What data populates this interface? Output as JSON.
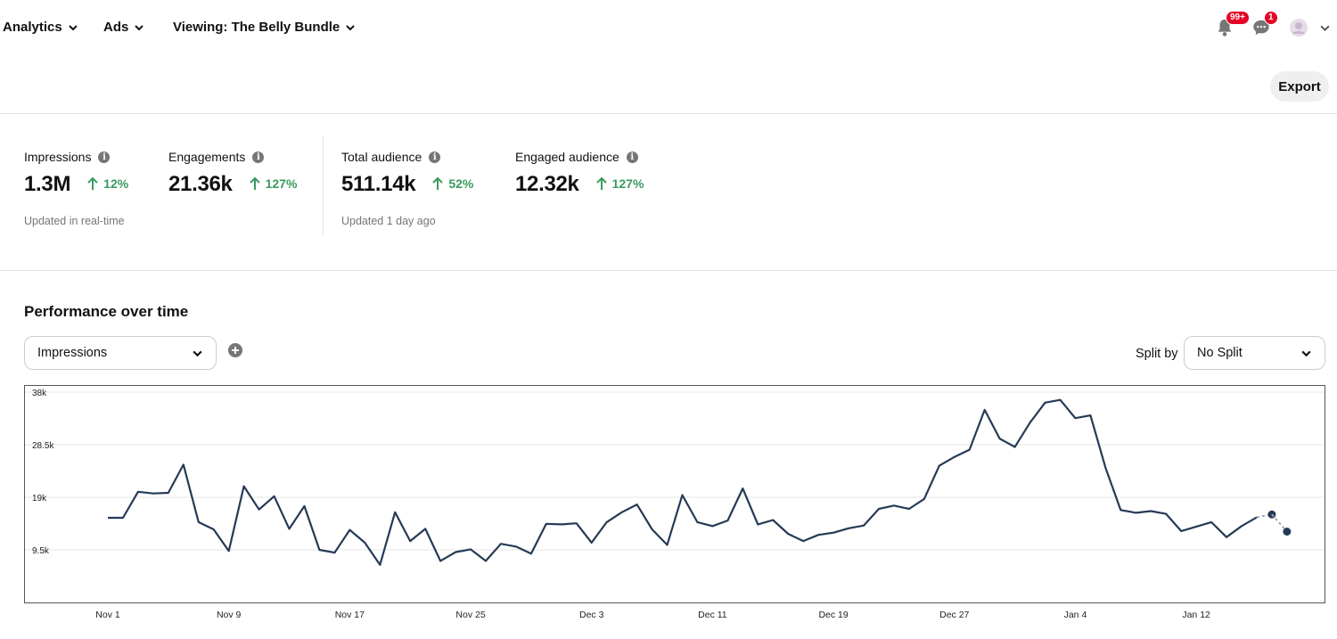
{
  "topbar": {
    "nav": [
      {
        "label": "Analytics"
      },
      {
        "label": "Ads"
      },
      {
        "label": "Viewing: The Belly Bundle"
      }
    ],
    "notifications_badge": "99+",
    "messages_badge": "1"
  },
  "toolbar": {
    "export_label": "Export"
  },
  "metrics": [
    {
      "label": "Impressions",
      "value": "1.3M",
      "change": "12%"
    },
    {
      "label": "Engagements",
      "value": "21.36k",
      "change": "127%"
    },
    {
      "label": "Total audience",
      "value": "511.14k",
      "change": "52%"
    },
    {
      "label": "Engaged audience",
      "value": "12.32k",
      "change": "127%"
    }
  ],
  "updated": {
    "realtime": "Updated in real-time",
    "audience": "Updated 1 day ago"
  },
  "performance": {
    "title": "Performance over time",
    "metric_select": "Impressions",
    "split_label": "Split by",
    "split_select": "No Split"
  },
  "colors": {
    "line": "#263a56",
    "positive": "#3a9a60",
    "badge": "#e60023"
  },
  "chart_data": {
    "type": "line",
    "title": "",
    "xlabel": "",
    "ylabel": "",
    "ylim": [
      0,
      38000
    ],
    "yticks": [
      9500,
      19000,
      28500,
      38000
    ],
    "ytick_labels": [
      "9.5k",
      "19k",
      "28.5k",
      "38k"
    ],
    "xticks": [
      {
        "label": "Nov 1",
        "day": 0
      },
      {
        "label": "Nov 9",
        "day": 8
      },
      {
        "label": "Nov 17",
        "day": 16
      },
      {
        "label": "Nov 25",
        "day": 24
      },
      {
        "label": "Dec 3",
        "day": 32
      },
      {
        "label": "Dec 11",
        "day": 40
      },
      {
        "label": "Dec 19",
        "day": 48
      },
      {
        "label": "Dec 27",
        "day": 56
      },
      {
        "label": "Jan 4",
        "day": 64
      },
      {
        "label": "Jan 12",
        "day": 72
      }
    ],
    "grid": true,
    "series": [
      {
        "values": [
          15300,
          15300,
          20000,
          19700,
          19800,
          24900,
          14500,
          13200,
          9300,
          21000,
          16800,
          19200,
          13300,
          17400,
          9500,
          9000,
          13100,
          10800,
          6800,
          16300,
          11100,
          13300,
          7500,
          9100,
          9600,
          7500,
          10600,
          10100,
          8800,
          14200,
          14100,
          14300,
          10800,
          14500,
          16300,
          17700,
          13200,
          10400,
          19400,
          14500,
          13800,
          14800,
          20600,
          14100,
          14900,
          12400,
          11100,
          12200,
          12600,
          13400,
          13900,
          16900,
          17500,
          16900,
          18700,
          24700,
          26300,
          27600,
          34800,
          29600,
          28100,
          32500,
          36100,
          36600,
          33300,
          33800,
          24300,
          16700,
          16200,
          16500,
          16000,
          12900,
          13700,
          14500,
          11800,
          13800,
          15400
        ],
        "projected": [
          15900,
          12800
        ]
      }
    ]
  }
}
